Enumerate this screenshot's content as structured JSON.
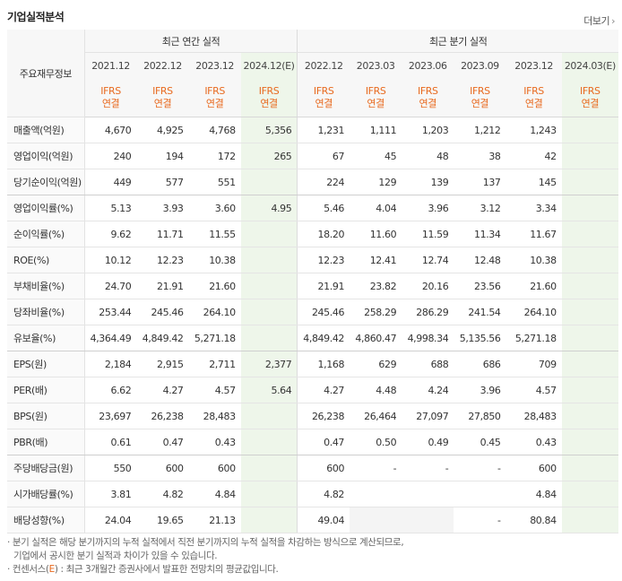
{
  "title": "기업실적분석",
  "more_label": "더보기",
  "corner_label": "주요재무정보",
  "group_annual": "최근 연간 실적",
  "group_quarter": "최근 분기 실적",
  "columns": [
    {
      "period": "2021.12",
      "ifrs": "IFRS",
      "basis": "연결"
    },
    {
      "period": "2022.12",
      "ifrs": "IFRS",
      "basis": "연결"
    },
    {
      "period": "2023.12",
      "ifrs": "IFRS",
      "basis": "연결"
    },
    {
      "period": "2024.12(E)",
      "ifrs": "IFRS",
      "basis": "연결"
    },
    {
      "period": "2022.12",
      "ifrs": "IFRS",
      "basis": "연결"
    },
    {
      "period": "2023.03",
      "ifrs": "IFRS",
      "basis": "연결"
    },
    {
      "period": "2023.06",
      "ifrs": "IFRS",
      "basis": "연결"
    },
    {
      "period": "2023.09",
      "ifrs": "IFRS",
      "basis": "연결"
    },
    {
      "period": "2023.12",
      "ifrs": "IFRS",
      "basis": "연결"
    },
    {
      "period": "2024.03(E)",
      "ifrs": "IFRS",
      "basis": "연결"
    }
  ],
  "rows": [
    {
      "label": "매출액(억원)",
      "values": [
        "4,670",
        "4,925",
        "4,768",
        "5,356",
        "1,231",
        "1,111",
        "1,203",
        "1,212",
        "1,243",
        ""
      ]
    },
    {
      "label": "영업이익(억원)",
      "values": [
        "240",
        "194",
        "172",
        "265",
        "67",
        "45",
        "48",
        "38",
        "42",
        ""
      ]
    },
    {
      "label": "당기순이익(억원)",
      "values": [
        "449",
        "577",
        "551",
        "",
        "224",
        "129",
        "139",
        "137",
        "145",
        ""
      ]
    },
    {
      "label": "영업이익률(%)",
      "values": [
        "5.13",
        "3.93",
        "3.60",
        "4.95",
        "5.46",
        "4.04",
        "3.96",
        "3.12",
        "3.34",
        ""
      ]
    },
    {
      "label": "순이익률(%)",
      "values": [
        "9.62",
        "11.71",
        "11.55",
        "",
        "18.20",
        "11.60",
        "11.59",
        "11.34",
        "11.67",
        ""
      ]
    },
    {
      "label": "ROE(%)",
      "values": [
        "10.12",
        "12.23",
        "10.38",
        "",
        "12.23",
        "12.41",
        "12.74",
        "12.48",
        "10.38",
        ""
      ]
    },
    {
      "label": "부채비율(%)",
      "values": [
        "24.70",
        "21.91",
        "21.60",
        "",
        "21.91",
        "23.82",
        "20.16",
        "23.56",
        "21.60",
        ""
      ]
    },
    {
      "label": "당좌비율(%)",
      "values": [
        "253.44",
        "245.46",
        "264.10",
        "",
        "245.46",
        "258.29",
        "286.29",
        "241.54",
        "264.10",
        ""
      ]
    },
    {
      "label": "유보율(%)",
      "values": [
        "4,364.49",
        "4,849.42",
        "5,271.18",
        "",
        "4,849.42",
        "4,860.47",
        "4,998.34",
        "5,135.56",
        "5,271.18",
        ""
      ]
    },
    {
      "label": "EPS(원)",
      "values": [
        "2,184",
        "2,915",
        "2,711",
        "2,377",
        "1,168",
        "629",
        "688",
        "686",
        "709",
        ""
      ]
    },
    {
      "label": "PER(배)",
      "values": [
        "6.62",
        "4.27",
        "4.57",
        "5.64",
        "4.27",
        "4.48",
        "4.24",
        "3.96",
        "4.57",
        ""
      ]
    },
    {
      "label": "BPS(원)",
      "values": [
        "23,697",
        "26,238",
        "28,483",
        "",
        "26,238",
        "26,464",
        "27,097",
        "27,850",
        "28,483",
        ""
      ]
    },
    {
      "label": "PBR(배)",
      "values": [
        "0.61",
        "0.47",
        "0.43",
        "",
        "0.47",
        "0.50",
        "0.49",
        "0.45",
        "0.43",
        ""
      ]
    },
    {
      "label": "주당배당금(원)",
      "values": [
        "550",
        "600",
        "600",
        "",
        "600",
        "-",
        "-",
        "-",
        "600",
        ""
      ]
    },
    {
      "label": "시가배당률(%)",
      "values": [
        "3.81",
        "4.82",
        "4.84",
        "",
        "4.82",
        "",
        "",
        "",
        "4.84",
        ""
      ]
    },
    {
      "label": "배당성향(%)",
      "values": [
        "24.04",
        "19.65",
        "21.13",
        "",
        "49.04",
        "",
        "",
        "-",
        "80.84",
        ""
      ]
    }
  ],
  "blank_cells": [
    [
      15,
      5
    ],
    [
      15,
      6
    ]
  ],
  "notes": {
    "line1": "분기 실적은 해당 분기까지의 누적 실적에서 직전 분기까지의 누적 실적을 차감하는 방식으로 계산되므로,",
    "line2": "기업에서 공시한 분기 실적과 차이가 있을 수 있습니다.",
    "line3_prefix": "컨센서스(",
    "line3_mark": "E",
    "line3_suffix": ") : 최근 3개월간 증권사에서 발표한 전망치의 평균값입니다."
  }
}
